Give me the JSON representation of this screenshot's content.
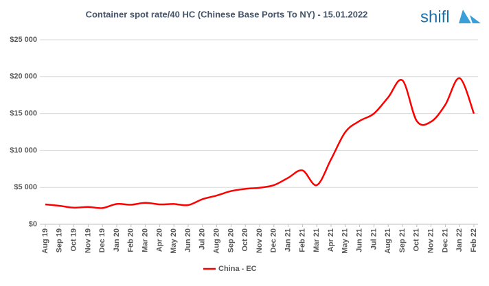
{
  "chart_data": {
    "type": "line",
    "title": "Container spot rate/40 HC (Chinese Base Ports To NY) - 15.01.2022",
    "logo": "shifl",
    "categories": [
      "Aug 19",
      "Sep 19",
      "Oct 19",
      "Nov 19",
      "Dec 19",
      "Jan 20",
      "Feb 20",
      "Mar 20",
      "Apr 20",
      "May 20",
      "Jun 20",
      "Jul 20",
      "Aug 20",
      "Sep 20",
      "Oct 20",
      "Nov 20",
      "Dec 20",
      "Jan 21",
      "Feb 21",
      "Mar 21",
      "Apr 21",
      "May 21",
      "Jun 21",
      "Jul 21",
      "Aug 21",
      "Sep 21",
      "Oct 21",
      "Nov 21",
      "Dec 21",
      "Jan 22",
      "Feb 22"
    ],
    "series": [
      {
        "name": "China - EC",
        "color": "#ff0000",
        "values": [
          2700,
          2500,
          2250,
          2350,
          2200,
          2750,
          2650,
          2900,
          2700,
          2750,
          2600,
          3400,
          3900,
          4500,
          4800,
          4950,
          5300,
          6300,
          7300,
          5300,
          8800,
          12500,
          14000,
          15000,
          17200,
          19500,
          14000,
          13900,
          16200,
          19800,
          15000
        ]
      }
    ],
    "ylim": [
      0,
      25000
    ],
    "yticks": [
      {
        "value": 0,
        "label": "$0"
      },
      {
        "value": 5000,
        "label": "$5 000"
      },
      {
        "value": 10000,
        "label": "$10 000"
      },
      {
        "value": 15000,
        "label": "$15 000"
      },
      {
        "value": 20000,
        "label": "$20 000"
      },
      {
        "value": 25000,
        "label": "$25 000"
      }
    ],
    "grid": true,
    "legend": "bottom"
  }
}
